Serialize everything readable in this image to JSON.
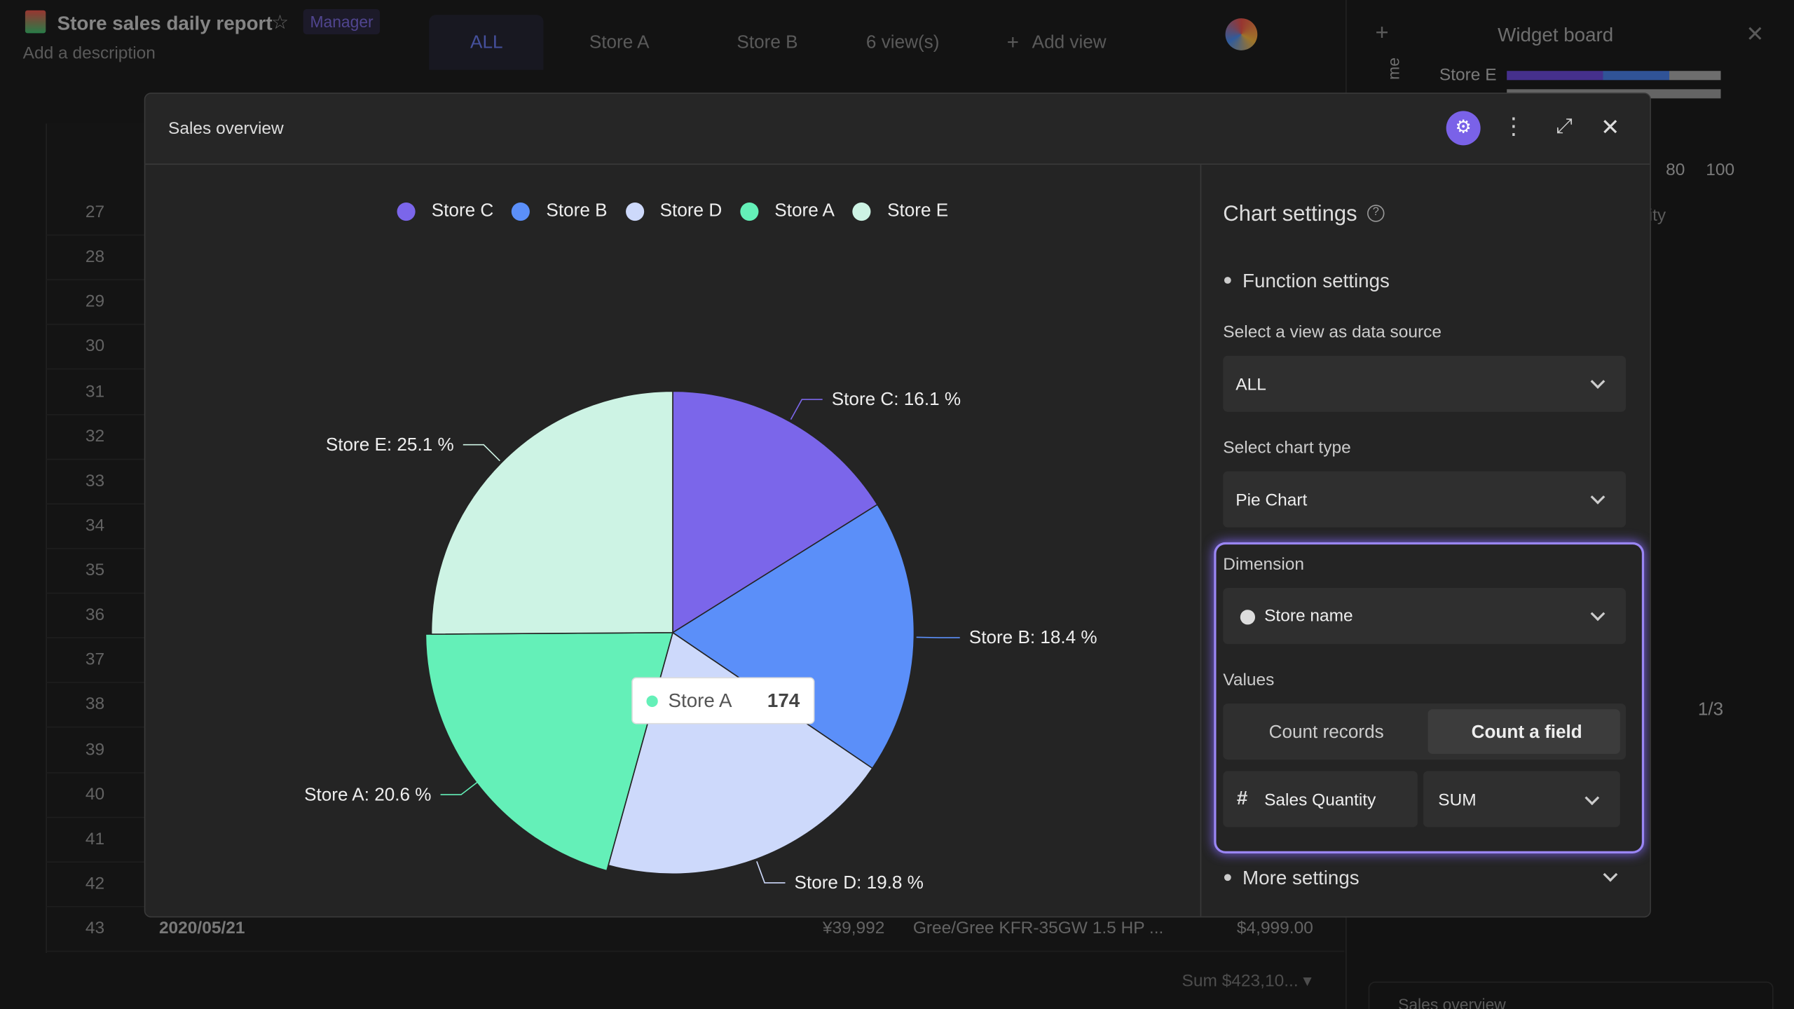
{
  "app": {
    "title": "Store sales daily report",
    "role": "Manager",
    "description": "Add a description",
    "tabs": [
      "ALL",
      "Store A",
      "Store B"
    ],
    "views": "6 view(s)",
    "add_view": "Add view"
  },
  "table": {
    "row_numbers": [
      27,
      28,
      29,
      30,
      31,
      32,
      33,
      34,
      35,
      36,
      37,
      38,
      39,
      40,
      41,
      42,
      43
    ],
    "last_row": [
      "2020/05/21",
      "¥39,992",
      "Gree/Gree KFR-35GW 1.5 HP ...",
      "$4,999.00"
    ],
    "footer": "Sum $423,10... ▾"
  },
  "widget_board": {
    "title": "Widget board",
    "bar_label": "Store E",
    "ticks": [
      "80",
      "100"
    ],
    "axis_fragment": "ity",
    "pager": "1/3",
    "next_widget": "Sales overview",
    "side_fragment": "me"
  },
  "chart_data": {
    "type": "pie",
    "title": "Sales overview",
    "categories": [
      "Store C",
      "Store B",
      "Store D",
      "Store A",
      "Store E"
    ],
    "values": [
      16.1,
      18.4,
      19.8,
      20.6,
      25.1
    ],
    "value_labels": [
      "Store C: 16.1 %",
      "Store B: 18.4 %",
      "Store D: 19.8 %",
      "Store A: 20.6 %",
      "Store E: 25.1 %"
    ],
    "colors": [
      "#7b66ea",
      "#5b8ff9",
      "#cdd9fb",
      "#64f0b8",
      "#cdf3e4"
    ],
    "legend": "top"
  },
  "tooltip": {
    "name": "Store A",
    "value": 174
  },
  "settings": {
    "title": "Chart settings",
    "function": "Function settings",
    "source_label": "Select a view as data source",
    "source": "ALL",
    "type_label": "Select chart type",
    "chart_type": "Pie Chart",
    "dimension_label": "Dimension",
    "dimension": "Store name",
    "values_label": "Values",
    "count_records": "Count records",
    "count_field": "Count a field",
    "field": "Sales Quantity",
    "aggregate": "SUM",
    "more": "More settings"
  }
}
